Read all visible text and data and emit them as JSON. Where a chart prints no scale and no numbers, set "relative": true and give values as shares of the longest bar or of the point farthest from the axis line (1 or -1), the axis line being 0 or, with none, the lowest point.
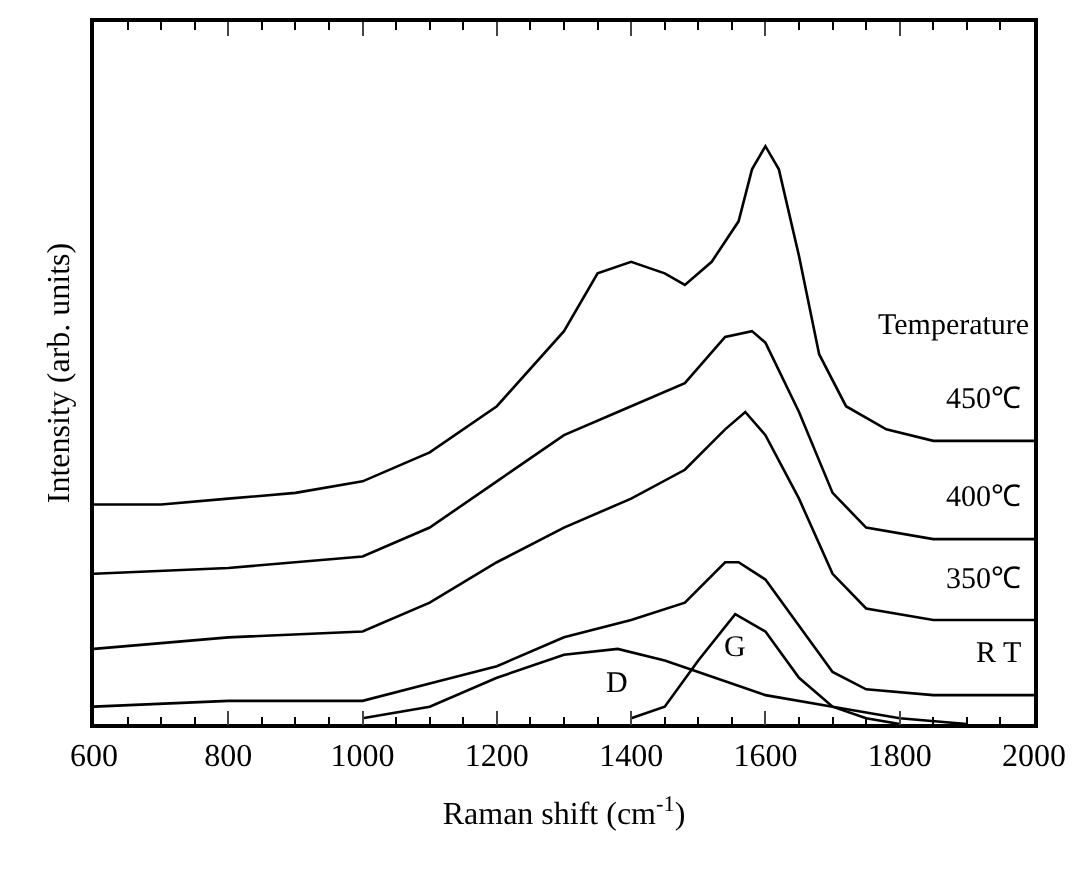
{
  "chart_data": {
    "type": "line",
    "relative": true,
    "xlabel": "Raman shift (cm$^{-1}$)",
    "ylabel": "Intensity (arb. units)",
    "xlim": [
      600,
      2000
    ],
    "xticks": [
      600,
      800,
      1000,
      1200,
      1400,
      1600,
      1800,
      2000
    ],
    "legend": false,
    "marker": "none",
    "line_style": "solid",
    "series": [
      {
        "name": "450℃",
        "color": "#000000",
        "x": [
          600,
          700,
          800,
          900,
          1000,
          1100,
          1200,
          1300,
          1350,
          1400,
          1450,
          1480,
          1520,
          1560,
          1580,
          1600,
          1620,
          1650,
          1680,
          1720,
          1780,
          1850,
          2000
        ],
        "values": [
          0.38,
          0.38,
          0.39,
          0.4,
          0.42,
          0.47,
          0.55,
          0.68,
          0.78,
          0.8,
          0.78,
          0.76,
          0.8,
          0.87,
          0.96,
          1.0,
          0.96,
          0.81,
          0.64,
          0.55,
          0.51,
          0.49,
          0.49
        ]
      },
      {
        "name": "400℃",
        "color": "#000000",
        "x": [
          600,
          800,
          1000,
          1100,
          1200,
          1300,
          1400,
          1480,
          1540,
          1580,
          1600,
          1650,
          1700,
          1750,
          1850,
          2000
        ],
        "values": [
          0.26,
          0.27,
          0.29,
          0.34,
          0.42,
          0.5,
          0.55,
          0.59,
          0.67,
          0.68,
          0.66,
          0.54,
          0.4,
          0.34,
          0.32,
          0.32
        ]
      },
      {
        "name": "350℃",
        "color": "#000000",
        "x": [
          600,
          800,
          1000,
          1100,
          1200,
          1300,
          1400,
          1480,
          1540,
          1570,
          1600,
          1650,
          1700,
          1750,
          1850,
          2000
        ],
        "values": [
          0.13,
          0.15,
          0.16,
          0.21,
          0.28,
          0.34,
          0.39,
          0.44,
          0.51,
          0.54,
          0.5,
          0.39,
          0.26,
          0.2,
          0.18,
          0.18
        ]
      },
      {
        "name": "R T",
        "color": "#000000",
        "x": [
          600,
          800,
          1000,
          1100,
          1200,
          1300,
          1400,
          1480,
          1540,
          1560,
          1600,
          1650,
          1700,
          1750,
          1850,
          2000
        ],
        "values": [
          0.03,
          0.04,
          0.04,
          0.07,
          0.1,
          0.15,
          0.18,
          0.21,
          0.28,
          0.28,
          0.25,
          0.17,
          0.09,
          0.06,
          0.05,
          0.05
        ]
      },
      {
        "name": "D",
        "color": "#000000",
        "x": [
          1000,
          1100,
          1200,
          1300,
          1380,
          1450,
          1500,
          1600,
          1700,
          1800,
          1900
        ],
        "values": [
          0.01,
          0.03,
          0.08,
          0.12,
          0.13,
          0.11,
          0.09,
          0.05,
          0.03,
          0.01,
          0.0
        ]
      },
      {
        "name": "G",
        "color": "#000000",
        "x": [
          1400,
          1450,
          1500,
          1555,
          1600,
          1650,
          1700,
          1750,
          1800
        ],
        "values": [
          0.01,
          0.03,
          0.11,
          0.19,
          0.16,
          0.08,
          0.03,
          0.01,
          0.0
        ]
      }
    ],
    "legend_title": "Temperature"
  }
}
